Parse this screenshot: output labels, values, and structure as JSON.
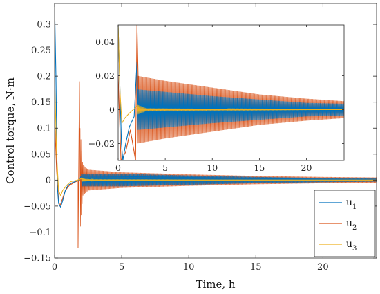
{
  "chart_data": [
    {
      "type": "line",
      "panel": "main",
      "xlabel": "Time, h",
      "ylabel": "Control torque, N·m",
      "xlim": [
        0,
        24
      ],
      "ylim": [
        -0.15,
        0.34
      ],
      "xticks": [
        0,
        5,
        10,
        15,
        20
      ],
      "yticks": [
        -0.15,
        -0.1,
        -0.05,
        0,
        0.05,
        0.1,
        0.15,
        0.2,
        0.25,
        0.3
      ],
      "ytick_labels": [
        "−0.15",
        "−0.1",
        "−0.05",
        "0",
        "0.05",
        "0.1",
        "0.15",
        "0.2",
        "0.25",
        "0.3"
      ],
      "legend": {
        "placement": "bottom-right"
      },
      "series": [
        {
          "name": "u",
          "subscript": "1",
          "color": "#0072BD",
          "points": [
            [
              0,
              0.34
            ],
            [
              0.1,
              0.2
            ],
            [
              0.2,
              -0.01
            ],
            [
              0.3,
              -0.045
            ],
            [
              0.45,
              -0.052
            ],
            [
              0.6,
              -0.04
            ],
            [
              0.8,
              -0.02
            ],
            [
              1.0,
              -0.01
            ],
            [
              1.3,
              -0.005
            ],
            [
              1.8,
              0.0
            ],
            [
              2.0,
              0.008
            ],
            [
              24,
              0.0
            ]
          ],
          "oscillation_envelope": [
            [
              2,
              0.012
            ],
            [
              5,
              0.012
            ],
            [
              10,
              0.009
            ],
            [
              15,
              0.006
            ],
            [
              20,
              0.004
            ],
            [
              24,
              0.003
            ]
          ]
        },
        {
          "name": "u",
          "subscript": "2",
          "color": "#D95319",
          "points": [
            [
              0,
              0.12
            ],
            [
              0.15,
              0.02
            ],
            [
              0.3,
              -0.04
            ],
            [
              0.4,
              -0.05
            ],
            [
              0.6,
              -0.035
            ],
            [
              0.8,
              -0.02
            ],
            [
              1.1,
              -0.01
            ],
            [
              1.5,
              -0.004
            ],
            [
              1.85,
              0.0
            ],
            [
              24,
              0.0
            ]
          ],
          "spike": [
            [
              1.75,
              -0.13
            ],
            [
              1.85,
              0.19
            ]
          ],
          "oscillation_envelope": [
            [
              1.9,
              0.1
            ],
            [
              2.1,
              0.03
            ],
            [
              2.5,
              0.02
            ],
            [
              5,
              0.015
            ],
            [
              10,
              0.011
            ],
            [
              15,
              0.008
            ],
            [
              20,
              0.006
            ],
            [
              24,
              0.005
            ]
          ]
        },
        {
          "name": "u",
          "subscript": "3",
          "color": "#EDB120",
          "points": [
            [
              0,
              0.2
            ],
            [
              0.15,
              0.05
            ],
            [
              0.3,
              -0.02
            ],
            [
              0.45,
              -0.03
            ],
            [
              0.6,
              -0.02
            ],
            [
              0.9,
              -0.01
            ],
            [
              1.2,
              -0.003
            ],
            [
              1.7,
              0.0
            ],
            [
              2.0,
              0.003
            ],
            [
              2.4,
              0.0
            ],
            [
              24,
              0.0
            ]
          ],
          "oscillation_envelope": [
            [
              2,
              0.003
            ],
            [
              3,
              0.001
            ],
            [
              24,
              0.0
            ]
          ]
        }
      ]
    },
    {
      "type": "line",
      "panel": "inset",
      "xlim": [
        0,
        24
      ],
      "ylim": [
        -0.03,
        0.05
      ],
      "xticks": [
        0,
        5,
        10,
        15,
        20
      ],
      "yticks": [
        -0.02,
        0,
        0.02,
        0.04
      ],
      "ytick_labels": [
        "−0.02",
        "0",
        "0.02",
        "0.04"
      ],
      "series": [
        {
          "name": "u",
          "subscript": "1",
          "color": "#0072BD",
          "points": [
            [
              0,
              0.05
            ],
            [
              0.2,
              0.01
            ],
            [
              0.35,
              -0.02
            ],
            [
              0.5,
              -0.03
            ],
            [
              0.8,
              -0.02
            ],
            [
              1.2,
              -0.01
            ],
            [
              1.7,
              -0.004
            ],
            [
              2.0,
              0.028
            ],
            [
              2.1,
              0.0
            ],
            [
              24,
              0.0
            ]
          ],
          "oscillation_envelope": [
            [
              2,
              0.012
            ],
            [
              5,
              0.0105
            ],
            [
              10,
              0.008
            ],
            [
              15,
              0.006
            ],
            [
              20,
              0.004
            ],
            [
              24,
              0.0035
            ]
          ]
        },
        {
          "name": "u",
          "subscript": "2",
          "color": "#D95319",
          "points": [
            [
              0,
              0.02
            ],
            [
              0.3,
              -0.03
            ],
            [
              0.8,
              -0.025
            ],
            [
              1.3,
              -0.012
            ],
            [
              1.85,
              -0.03
            ],
            [
              2.0,
              0.05
            ],
            [
              2.2,
              0.0
            ],
            [
              24,
              0.0
            ]
          ],
          "oscillation_envelope": [
            [
              2,
              0.02
            ],
            [
              3,
              0.019
            ],
            [
              5,
              0.017
            ],
            [
              10,
              0.013
            ],
            [
              15,
              0.009
            ],
            [
              20,
              0.0065
            ],
            [
              24,
              0.005
            ]
          ]
        },
        {
          "name": "u",
          "subscript": "3",
          "color": "#EDB120",
          "points": [
            [
              0,
              0.05
            ],
            [
              0.2,
              0.01
            ],
            [
              0.4,
              -0.008
            ],
            [
              0.7,
              -0.005
            ],
            [
              1.2,
              -0.002
            ],
            [
              2.0,
              0.002
            ],
            [
              2.4,
              0.0
            ],
            [
              24,
              0.0
            ]
          ],
          "oscillation_envelope": [
            [
              2,
              0.003
            ],
            [
              3,
              0.0008
            ],
            [
              24,
              0.0
            ]
          ]
        }
      ]
    }
  ]
}
